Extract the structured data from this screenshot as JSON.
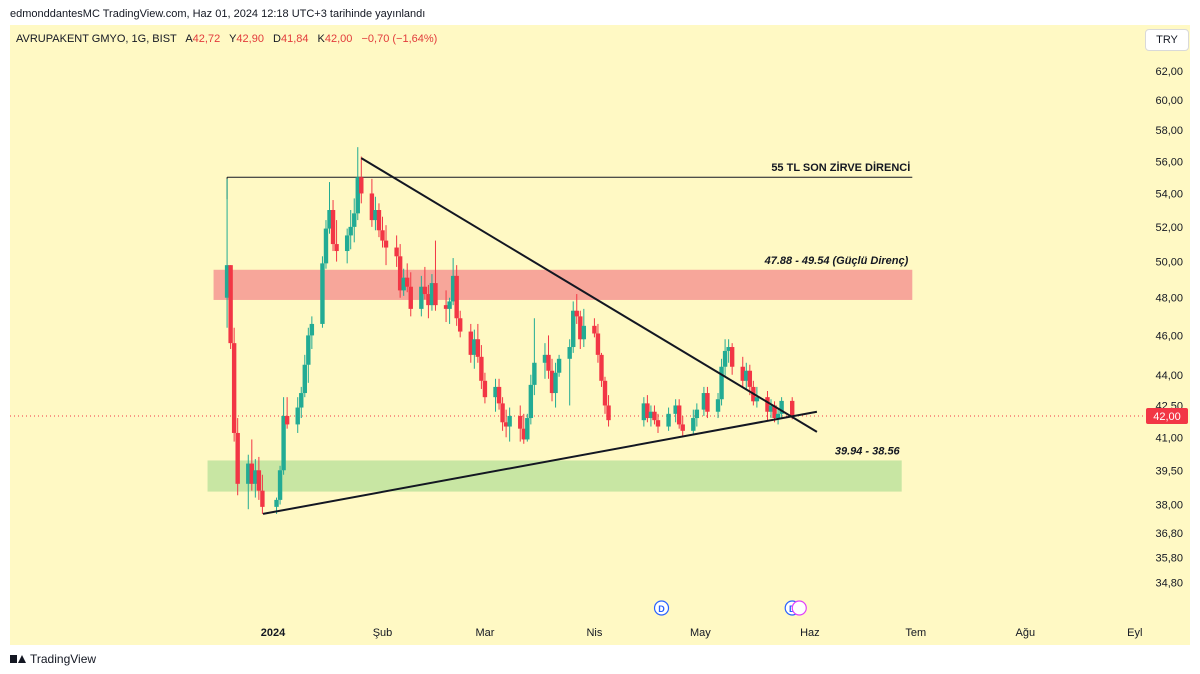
{
  "header": {
    "published": "edmonddantesMC TradingView.com, Haz 01, 2024 12:18 UTC+3 tarihinde yayınlandı"
  },
  "symbol": {
    "name": "AVRUPAKENT GMYO, 1G, BIST",
    "open_label": "A",
    "open": "42,72",
    "high_label": "Y",
    "high": "42,90",
    "low_label": "D",
    "low": "41,84",
    "close_label": "K",
    "close": "42,00",
    "change": "−0,70 (−1,64%)"
  },
  "currency_button": "TRY",
  "footer": {
    "brand": "TradingView"
  },
  "chart_data": {
    "type": "candlestick",
    "y_axis": {
      "labels": [
        "62,00",
        "60,00",
        "58,00",
        "56,00",
        "54,00",
        "52,00",
        "50,00",
        "48,00",
        "46,00",
        "44,00",
        "42,50",
        "41,00",
        "39,50",
        "38,00",
        "36,80",
        "35,80",
        "34,80"
      ],
      "log_scale": true,
      "min": 34.0,
      "max": 63.0
    },
    "x_axis": {
      "labels": [
        "2024",
        "Şub",
        "Mar",
        "Nis",
        "May",
        "Haz",
        "Tem",
        "Ağu",
        "Eyl"
      ],
      "start": "2023-12-19",
      "end": "2024-09-16"
    },
    "last_price": "42,00",
    "last_price_value": 42.0,
    "colors": {
      "up": "#22ab94",
      "down": "#f23645",
      "background": "#fff9c4",
      "price_tag": "#f23645"
    },
    "candles": [
      [
        "2023-12-19",
        48.0,
        54.9,
        46.4,
        49.8
      ],
      [
        "2023-12-20",
        49.8,
        49.8,
        45.3,
        45.6
      ],
      [
        "2023-12-21",
        45.6,
        46.4,
        40.8,
        41.2
      ],
      [
        "2023-12-22",
        41.2,
        41.9,
        38.4,
        38.9
      ],
      [
        "2023-12-25",
        38.9,
        40.2,
        37.8,
        39.8
      ],
      [
        "2023-12-26",
        39.8,
        40.9,
        38.6,
        38.9
      ],
      [
        "2023-12-27",
        38.9,
        40.0,
        38.3,
        39.5
      ],
      [
        "2023-12-28",
        39.5,
        40.1,
        38.2,
        38.6
      ],
      [
        "2023-12-29",
        38.6,
        39.3,
        37.6,
        37.9
      ],
      [
        "2024-01-02",
        37.9,
        38.3,
        37.6,
        38.2
      ],
      [
        "2024-01-03",
        38.2,
        39.7,
        38.0,
        39.5
      ],
      [
        "2024-01-04",
        39.5,
        42.9,
        39.3,
        42.0
      ],
      [
        "2024-01-05",
        42.0,
        42.9,
        41.4,
        41.6
      ],
      [
        "2024-01-08",
        41.6,
        42.9,
        41.2,
        42.4
      ],
      [
        "2024-01-09",
        42.4,
        43.4,
        41.9,
        43.1
      ],
      [
        "2024-01-10",
        43.1,
        45.0,
        42.9,
        44.5
      ],
      [
        "2024-01-11",
        44.5,
        46.4,
        43.6,
        46.0
      ],
      [
        "2024-01-12",
        46.0,
        47.0,
        45.3,
        46.6
      ],
      [
        "2024-01-15",
        46.6,
        50.3,
        46.4,
        49.9
      ],
      [
        "2024-01-16",
        49.9,
        52.4,
        49.6,
        51.9
      ],
      [
        "2024-01-17",
        51.9,
        54.7,
        51.6,
        53.0
      ],
      [
        "2024-01-18",
        53.0,
        53.6,
        50.6,
        51.0
      ],
      [
        "2024-01-19",
        51.0,
        52.4,
        50.0,
        50.6
      ],
      [
        "2024-01-22",
        50.6,
        51.9,
        49.9,
        51.5
      ],
      [
        "2024-01-23",
        51.5,
        53.0,
        50.7,
        52.0
      ],
      [
        "2024-01-24",
        52.0,
        53.7,
        51.1,
        52.8
      ],
      [
        "2024-01-25",
        52.8,
        56.9,
        52.4,
        55.0
      ],
      [
        "2024-01-26",
        55.0,
        56.3,
        53.4,
        54.0
      ],
      [
        "2024-01-29",
        54.0,
        54.9,
        52.0,
        52.4
      ],
      [
        "2024-01-30",
        52.4,
        53.8,
        51.8,
        53.0
      ],
      [
        "2024-01-31",
        53.0,
        53.4,
        51.4,
        51.8
      ],
      [
        "2024-02-01",
        51.8,
        52.6,
        50.8,
        51.2
      ],
      [
        "2024-02-02",
        51.2,
        52.1,
        49.8,
        50.8
      ],
      [
        "2024-02-05",
        50.8,
        51.5,
        49.7,
        50.3
      ],
      [
        "2024-02-06",
        50.3,
        51.0,
        48.0,
        48.4
      ],
      [
        "2024-02-07",
        48.4,
        49.6,
        48.1,
        49.1
      ],
      [
        "2024-02-08",
        49.1,
        49.9,
        48.3,
        48.6
      ],
      [
        "2024-02-09",
        48.6,
        49.4,
        47.0,
        47.4
      ],
      [
        "2024-02-12",
        47.4,
        49.2,
        47.0,
        48.6
      ],
      [
        "2024-02-13",
        48.6,
        49.7,
        47.9,
        48.2
      ],
      [
        "2024-02-14",
        48.2,
        48.7,
        46.9,
        47.6
      ],
      [
        "2024-02-15",
        47.6,
        49.3,
        47.3,
        48.8
      ],
      [
        "2024-02-16",
        48.8,
        51.2,
        47.3,
        47.6
      ],
      [
        "2024-02-19",
        47.6,
        48.4,
        46.7,
        47.4
      ],
      [
        "2024-02-20",
        47.4,
        48.0,
        46.6,
        47.8
      ],
      [
        "2024-02-21",
        47.8,
        50.2,
        47.6,
        49.2
      ],
      [
        "2024-02-22",
        49.2,
        49.8,
        46.5,
        46.9
      ],
      [
        "2024-02-23",
        46.9,
        47.3,
        45.9,
        46.2
      ],
      [
        "2024-02-26",
        46.2,
        46.6,
        44.6,
        45.0
      ],
      [
        "2024-02-27",
        45.0,
        46.3,
        44.3,
        45.8
      ],
      [
        "2024-02-28",
        45.8,
        46.6,
        44.6,
        44.9
      ],
      [
        "2024-02-29",
        44.9,
        45.5,
        43.3,
        43.7
      ],
      [
        "2024-03-01",
        43.7,
        44.1,
        42.6,
        42.9
      ],
      [
        "2024-03-04",
        42.9,
        43.8,
        42.2,
        43.4
      ],
      [
        "2024-03-05",
        43.4,
        43.8,
        42.3,
        42.6
      ],
      [
        "2024-03-06",
        42.6,
        42.9,
        41.3,
        41.7
      ],
      [
        "2024-03-07",
        41.7,
        42.3,
        41.0,
        41.5
      ],
      [
        "2024-03-08",
        41.5,
        42.4,
        40.8,
        42.0
      ],
      [
        "2024-03-11",
        42.0,
        42.5,
        40.8,
        41.4
      ],
      [
        "2024-03-12",
        41.4,
        42.1,
        40.7,
        40.9
      ],
      [
        "2024-03-13",
        40.9,
        42.1,
        40.8,
        41.9
      ],
      [
        "2024-03-14",
        41.9,
        44.0,
        41.6,
        43.5
      ],
      [
        "2024-03-15",
        43.5,
        46.9,
        43.0,
        44.6
      ],
      [
        "2024-03-18",
        44.6,
        45.6,
        43.8,
        45.0
      ],
      [
        "2024-03-19",
        45.0,
        46.0,
        43.8,
        44.2
      ],
      [
        "2024-03-20",
        44.2,
        44.8,
        42.7,
        43.1
      ],
      [
        "2024-03-21",
        43.1,
        44.6,
        42.4,
        44.1
      ],
      [
        "2024-03-22",
        44.1,
        45.0,
        43.9,
        44.8
      ],
      [
        "2024-03-25",
        44.8,
        45.8,
        42.5,
        45.4
      ],
      [
        "2024-03-26",
        45.4,
        47.8,
        45.1,
        47.3
      ],
      [
        "2024-03-27",
        47.3,
        48.2,
        46.6,
        47.0
      ],
      [
        "2024-03-28",
        47.0,
        47.3,
        45.3,
        45.8
      ],
      [
        "2024-03-29",
        45.8,
        47.4,
        45.4,
        46.5
      ],
      [
        "2024-04-01",
        46.5,
        46.9,
        45.9,
        46.1
      ],
      [
        "2024-04-02",
        46.1,
        46.6,
        44.6,
        45.0
      ],
      [
        "2024-04-03",
        45.0,
        45.1,
        43.4,
        43.7
      ],
      [
        "2024-04-04",
        43.7,
        43.9,
        42.1,
        42.5
      ],
      [
        "2024-04-05",
        42.5,
        43.0,
        41.5,
        41.8
      ],
      [
        "2024-04-15",
        41.8,
        42.9,
        41.5,
        42.6
      ],
      [
        "2024-04-16",
        42.6,
        43.0,
        41.7,
        41.9
      ],
      [
        "2024-04-17",
        41.9,
        42.5,
        41.5,
        42.2
      ],
      [
        "2024-04-18",
        42.2,
        42.5,
        41.6,
        41.8
      ],
      [
        "2024-04-19",
        41.8,
        42.1,
        41.2,
        41.5
      ],
      [
        "2024-04-22",
        41.5,
        42.4,
        41.3,
        42.1
      ],
      [
        "2024-04-24",
        42.1,
        42.8,
        41.7,
        42.5
      ],
      [
        "2024-04-25",
        42.5,
        42.8,
        41.4,
        41.6
      ],
      [
        "2024-04-26",
        41.6,
        42.0,
        41.0,
        41.3
      ],
      [
        "2024-04-29",
        41.3,
        42.3,
        41.1,
        41.9
      ],
      [
        "2024-04-30",
        41.9,
        42.6,
        41.5,
        42.3
      ],
      [
        "2024-05-02",
        42.3,
        43.4,
        42.0,
        43.1
      ],
      [
        "2024-05-03",
        43.1,
        43.4,
        41.9,
        42.2
      ],
      [
        "2024-05-06",
        42.2,
        43.1,
        41.9,
        42.8
      ],
      [
        "2024-05-07",
        42.8,
        44.8,
        42.5,
        44.4
      ],
      [
        "2024-05-08",
        44.4,
        45.8,
        43.9,
        45.2
      ],
      [
        "2024-05-09",
        45.2,
        45.8,
        44.6,
        45.4
      ],
      [
        "2024-05-10",
        45.4,
        45.6,
        44.0,
        44.4
      ],
      [
        "2024-05-13",
        44.4,
        44.9,
        43.4,
        43.7
      ],
      [
        "2024-05-14",
        43.7,
        44.6,
        43.3,
        44.2
      ],
      [
        "2024-05-15",
        44.2,
        44.5,
        43.0,
        43.4
      ],
      [
        "2024-05-16",
        43.4,
        43.7,
        42.5,
        42.7
      ],
      [
        "2024-05-17",
        42.7,
        43.4,
        42.4,
        42.9
      ],
      [
        "2024-05-20",
        42.9,
        43.2,
        41.8,
        42.2
      ],
      [
        "2024-05-21",
        42.2,
        42.8,
        41.9,
        42.5
      ],
      [
        "2024-05-22",
        42.5,
        42.7,
        41.7,
        41.9
      ],
      [
        "2024-05-23",
        41.9,
        42.3,
        41.6,
        42.1
      ],
      [
        "2024-05-24",
        42.1,
        42.9,
        41.9,
        42.72
      ],
      [
        "2024-05-27",
        42.72,
        42.9,
        41.84,
        42.0
      ]
    ],
    "annotations": {
      "resistance_top": {
        "label": "55 TL SON ZİRVE DİRENCİ",
        "price": 55.0,
        "from": "2023-12-19",
        "to": "2024-06-30"
      },
      "strong_resistance": {
        "label": "47.88 - 49.54 (Güçlü Direnç)",
        "low": 47.88,
        "high": 49.54,
        "from": "2023-12-18",
        "to": "2024-06-30",
        "color": "#f7a69a"
      },
      "support_zone": {
        "label": "39.94 - 38.56",
        "low": 38.56,
        "high": 39.94,
        "from": "2023-12-18",
        "to": "2024-06-27",
        "color": "#c8e6a3"
      },
      "downtrend": {
        "from": [
          "2024-01-26",
          56.2
        ],
        "to": [
          "2024-06-03",
          41.25
        ]
      },
      "uptrend": {
        "from": [
          "2024-01-01",
          37.6
        ],
        "to": [
          "2024-06-03",
          42.2
        ]
      }
    },
    "events": [
      {
        "date": "2024-04-20",
        "label": "D"
      },
      {
        "date": "2024-05-27",
        "label": "D"
      }
    ],
    "split_event_date": "2024-05-29"
  }
}
